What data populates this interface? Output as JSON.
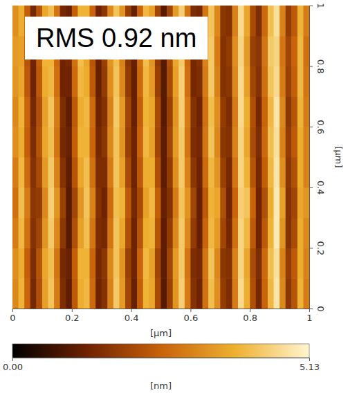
{
  "chart_data": {
    "type": "heatmap",
    "annotation": "RMS 0.92 nm",
    "x_label": "[μm]",
    "y_label": "[μm]",
    "xlim": [
      0,
      1
    ],
    "ylim": [
      0,
      1
    ],
    "xticks": [
      0,
      0.2,
      0.4,
      0.6,
      0.8,
      1
    ],
    "yticks": [
      0,
      0.2,
      0.4,
      0.6,
      0.8,
      1
    ],
    "x": [
      0.01,
      0.03,
      0.05,
      0.07,
      0.09,
      0.11,
      0.13,
      0.15,
      0.17,
      0.19,
      0.21,
      0.23,
      0.25,
      0.27,
      0.29,
      0.31,
      0.33,
      0.35,
      0.37,
      0.39,
      0.41,
      0.43,
      0.45,
      0.47,
      0.49,
      0.51,
      0.53,
      0.55,
      0.57,
      0.59,
      0.61,
      0.63,
      0.65,
      0.67,
      0.69,
      0.71,
      0.73,
      0.75,
      0.77,
      0.79,
      0.81,
      0.83,
      0.85,
      0.87,
      0.89,
      0.91,
      0.93,
      0.95,
      0.97,
      0.99
    ],
    "y": [
      0.05,
      0.15,
      0.25,
      0.35,
      0.45,
      0.55,
      0.65,
      0.75,
      0.85,
      0.95
    ],
    "z": [
      [
        3.2,
        3.9,
        2.6,
        1.4,
        2.2,
        3.6,
        4.2,
        3.0,
        1.5,
        1.1,
        2.4,
        3.8,
        4.0,
        2.7,
        1.3,
        1.6,
        3.1,
        4.3,
        3.5,
        2.0,
        1.2,
        2.5,
        3.9,
        3.7,
        2.1,
        1.0,
        1.9,
        3.4,
        4.4,
        3.0,
        1.6,
        1.3,
        2.8,
        4.1,
        3.3,
        1.8,
        1.5,
        3.0,
        4.6,
        3.8,
        2.2,
        1.4,
        2.6,
        4.0,
        4.8,
        3.2,
        1.7,
        2.3,
        3.9,
        3.0
      ],
      [
        3.3,
        3.8,
        2.5,
        1.5,
        2.3,
        3.7,
        4.1,
        2.9,
        1.4,
        1.2,
        2.5,
        3.9,
        3.9,
        2.6,
        1.4,
        1.7,
        3.2,
        4.2,
        3.4,
        1.9,
        1.3,
        2.6,
        4.0,
        3.6,
        2.0,
        1.1,
        2.0,
        3.5,
        4.3,
        2.9,
        1.5,
        1.4,
        2.9,
        4.2,
        3.2,
        1.7,
        1.6,
        3.1,
        4.5,
        3.7,
        2.1,
        1.5,
        2.7,
        4.1,
        4.7,
        3.1,
        1.8,
        2.4,
        3.8,
        3.1
      ],
      [
        3.0,
        4.0,
        2.8,
        1.6,
        2.0,
        3.4,
        4.3,
        3.2,
        1.7,
        1.0,
        2.2,
        3.6,
        4.1,
        2.9,
        1.5,
        1.4,
        2.9,
        4.2,
        3.7,
        2.2,
        1.3,
        2.3,
        3.8,
        3.9,
        2.3,
        1.1,
        1.8,
        3.2,
        4.3,
        3.2,
        1.8,
        1.2,
        2.6,
        4.0,
        3.5,
        2.0,
        1.4,
        2.8,
        4.5,
        4.0,
        2.4,
        1.3,
        2.4,
        3.9,
        4.9,
        3.4,
        1.6,
        2.1,
        3.8,
        3.2
      ],
      [
        2.8,
        4.1,
        3.0,
        1.7,
        1.8,
        3.2,
        4.4,
        3.4,
        1.9,
        1.0,
        2.0,
        3.4,
        4.2,
        3.1,
        1.6,
        1.3,
        2.7,
        4.1,
        3.9,
        2.4,
        1.4,
        2.1,
        3.6,
        4.0,
        2.5,
        1.2,
        1.6,
        3.0,
        4.2,
        3.4,
        2.0,
        1.2,
        2.4,
        3.9,
        3.7,
        2.2,
        1.3,
        2.6,
        4.4,
        4.2,
        2.6,
        1.3,
        2.2,
        3.8,
        4.9,
        3.6,
        1.6,
        2.0,
        3.7,
        3.4
      ],
      [
        3.0,
        4.0,
        2.7,
        1.6,
        2.1,
        3.5,
        4.3,
        3.1,
        1.6,
        1.1,
        2.3,
        3.7,
        4.1,
        2.8,
        1.5,
        1.5,
        3.0,
        4.2,
        3.6,
        2.1,
        1.3,
        2.4,
        3.8,
        3.8,
        2.2,
        1.1,
        1.8,
        3.3,
        4.3,
        3.1,
        1.7,
        1.3,
        2.7,
        4.0,
        3.4,
        1.9,
        1.4,
        2.9,
        4.5,
        3.9,
        2.3,
        1.4,
        2.5,
        4.0,
        4.8,
        3.3,
        1.7,
        2.2,
        3.8,
        3.1
      ],
      [
        3.3,
        3.8,
        2.5,
        1.5,
        2.3,
        3.7,
        4.1,
        2.9,
        1.4,
        1.2,
        2.5,
        3.9,
        3.9,
        2.6,
        1.4,
        1.7,
        3.2,
        4.2,
        3.4,
        1.9,
        1.3,
        2.6,
        4.0,
        3.6,
        2.0,
        1.1,
        2.0,
        3.5,
        4.3,
        2.9,
        1.5,
        1.4,
        2.9,
        4.2,
        3.2,
        1.7,
        1.6,
        3.1,
        4.5,
        3.7,
        2.1,
        1.5,
        2.7,
        4.1,
        4.7,
        3.1,
        1.8,
        2.4,
        3.8,
        3.1
      ],
      [
        3.2,
        3.9,
        2.6,
        1.4,
        2.2,
        3.6,
        4.2,
        3.0,
        1.5,
        1.1,
        2.4,
        3.8,
        4.0,
        2.7,
        1.3,
        1.6,
        3.1,
        4.3,
        3.5,
        2.0,
        1.2,
        2.5,
        3.9,
        3.7,
        2.1,
        1.0,
        1.9,
        3.4,
        4.4,
        3.0,
        1.6,
        1.3,
        2.8,
        4.1,
        3.3,
        1.8,
        1.5,
        3.0,
        4.6,
        3.8,
        2.2,
        1.4,
        2.6,
        4.0,
        4.8,
        3.2,
        1.7,
        2.3,
        3.9,
        3.0
      ],
      [
        3.4,
        3.7,
        2.4,
        1.3,
        2.4,
        3.8,
        4.0,
        2.8,
        1.3,
        1.3,
        2.7,
        4.0,
        3.8,
        2.4,
        1.2,
        1.8,
        3.3,
        4.2,
        3.2,
        1.8,
        1.2,
        2.7,
        4.0,
        3.5,
        1.9,
        1.0,
        2.1,
        3.6,
        4.4,
        2.8,
        1.4,
        1.5,
        3.0,
        4.3,
        3.1,
        1.6,
        1.7,
        3.2,
        4.6,
        3.6,
        2.0,
        1.6,
        2.8,
        4.2,
        4.6,
        3.0,
        1.9,
        2.5,
        4.0,
        2.9
      ],
      [
        3.5,
        3.6,
        2.3,
        1.3,
        2.5,
        3.9,
        3.9,
        2.7,
        1.3,
        1.4,
        2.8,
        4.1,
        3.7,
        2.3,
        1.2,
        1.9,
        3.4,
        4.1,
        3.1,
        1.7,
        1.2,
        2.8,
        4.1,
        3.4,
        1.8,
        1.0,
        2.2,
        3.7,
        4.3,
        2.7,
        1.4,
        1.6,
        3.1,
        4.3,
        3.0,
        1.6,
        1.8,
        3.3,
        4.5,
        3.5,
        1.9,
        1.7,
        2.9,
        4.3,
        4.5,
        2.9,
        2.0,
        2.6,
        4.0,
        2.8
      ],
      [
        3.3,
        3.8,
        2.5,
        1.4,
        2.3,
        3.7,
        4.1,
        2.9,
        1.4,
        1.2,
        2.5,
        3.9,
        3.9,
        2.6,
        1.3,
        1.7,
        3.2,
        4.2,
        3.4,
        1.9,
        1.2,
        2.6,
        4.0,
        3.6,
        2.0,
        1.0,
        2.0,
        3.5,
        4.4,
        2.9,
        1.5,
        1.4,
        2.9,
        4.2,
        3.2,
        1.7,
        1.6,
        3.1,
        4.6,
        3.7,
        2.1,
        1.5,
        2.7,
        4.1,
        4.7,
        3.1,
        1.8,
        2.4,
        3.9,
        3.0
      ]
    ],
    "colorbar": {
      "label": "[nm]",
      "range": [
        0,
        5.13
      ],
      "ticks": [
        {
          "value": 0,
          "label": "0.00"
        },
        {
          "value": 5.13,
          "label": "5.13"
        }
      ]
    }
  }
}
